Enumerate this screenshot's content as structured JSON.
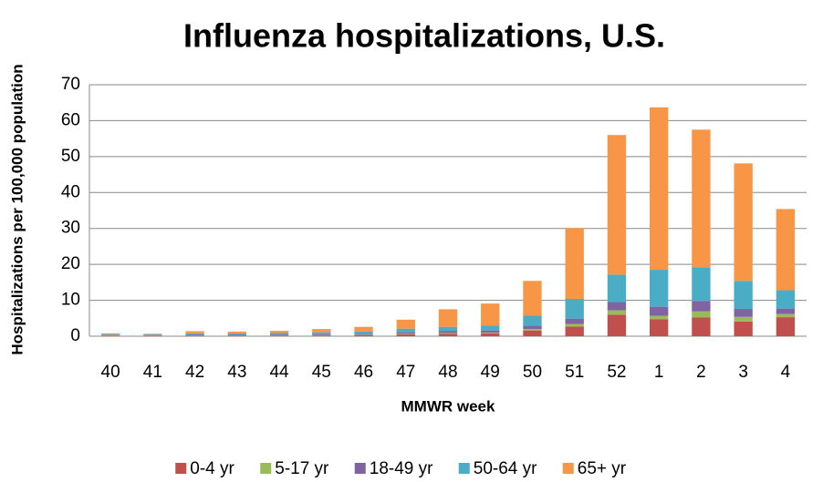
{
  "chart_data": {
    "type": "stacked_bar",
    "title": "Influenza hospitalizations, U.S.",
    "x_label": "MMWR week",
    "y_label": "Hospitalizations per 100,000 population",
    "categories": [
      "40",
      "41",
      "42",
      "43",
      "44",
      "45",
      "46",
      "47",
      "48",
      "49",
      "50",
      "51",
      "52",
      "1",
      "2",
      "3",
      "4"
    ],
    "series": [
      {
        "name": "0-4 yr",
        "color": "#c0504d",
        "values": [
          0.1,
          0.1,
          0.2,
          0.2,
          0.2,
          0.2,
          0.3,
          0.5,
          0.7,
          0.8,
          1.6,
          2.7,
          6.0,
          4.7,
          5.2,
          4.1,
          5.3
        ]
      },
      {
        "name": "5-17 yr",
        "color": "#9bbb59",
        "values": [
          0.1,
          0.1,
          0.1,
          0.1,
          0.1,
          0.1,
          0.1,
          0.2,
          0.2,
          0.2,
          0.4,
          0.7,
          1.2,
          1.0,
          1.7,
          1.3,
          0.9
        ]
      },
      {
        "name": "18-49 yr",
        "color": "#8064a2",
        "values": [
          0.1,
          0.1,
          0.2,
          0.2,
          0.2,
          0.3,
          0.3,
          0.4,
          0.5,
          0.6,
          0.9,
          1.5,
          2.3,
          2.5,
          2.9,
          2.2,
          1.5
        ]
      },
      {
        "name": "50-64 yr",
        "color": "#4bacc6",
        "values": [
          0.2,
          0.2,
          0.3,
          0.3,
          0.4,
          0.5,
          0.6,
          1.0,
          1.2,
          1.4,
          2.8,
          5.5,
          7.6,
          10.3,
          9.4,
          7.8,
          5.1
        ]
      },
      {
        "name": "65+ yr",
        "color": "#f79646",
        "values": [
          0.3,
          0.2,
          0.6,
          0.5,
          0.6,
          0.9,
          1.3,
          2.5,
          4.9,
          6.1,
          9.7,
          19.7,
          38.9,
          45.2,
          38.3,
          32.7,
          22.6
        ]
      }
    ],
    "ylim": [
      0,
      70
    ],
    "yticks": [
      0,
      10,
      20,
      30,
      40,
      50,
      60,
      70
    ],
    "grid": true,
    "legend": "bottom"
  }
}
